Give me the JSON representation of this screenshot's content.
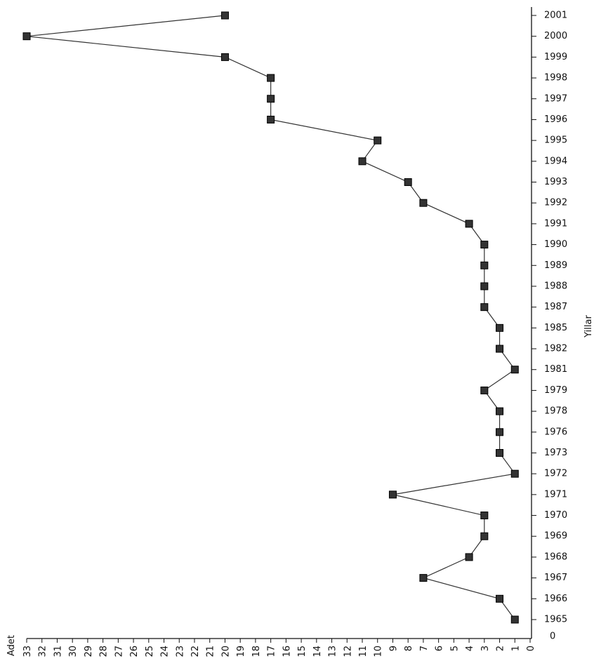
{
  "chart_data": {
    "type": "line",
    "orientation": "horizontal",
    "x_axis_label": "Adet",
    "y_axis_label": "Yillar",
    "category_axis_origin_label": "0",
    "categories": [
      "1965",
      "1966",
      "1967",
      "1968",
      "1969",
      "1970",
      "1971",
      "1972",
      "1973",
      "1976",
      "1978",
      "1979",
      "1981",
      "1982",
      "1985",
      "1987",
      "1988",
      "1989",
      "1990",
      "1991",
      "1992",
      "1993",
      "1994",
      "1995",
      "1996",
      "1997",
      "1998",
      "1999",
      "2000",
      "2001"
    ],
    "values": [
      1,
      2,
      7,
      4,
      3,
      3,
      9,
      1,
      2,
      2,
      2,
      3,
      1,
      2,
      2,
      3,
      3,
      3,
      3,
      4,
      7,
      8,
      11,
      10,
      17,
      17,
      17,
      20,
      33,
      20
    ],
    "color": "#333333",
    "x_reversed": true,
    "xlim": [
      0,
      33
    ],
    "xticks": [
      0,
      1,
      2,
      3,
      4,
      5,
      6,
      7,
      8,
      9,
      10,
      11,
      12,
      13,
      14,
      15,
      16,
      17,
      18,
      19,
      20,
      21,
      22,
      23,
      24,
      25,
      26,
      27,
      28,
      29,
      30,
      31,
      32,
      33
    ]
  }
}
